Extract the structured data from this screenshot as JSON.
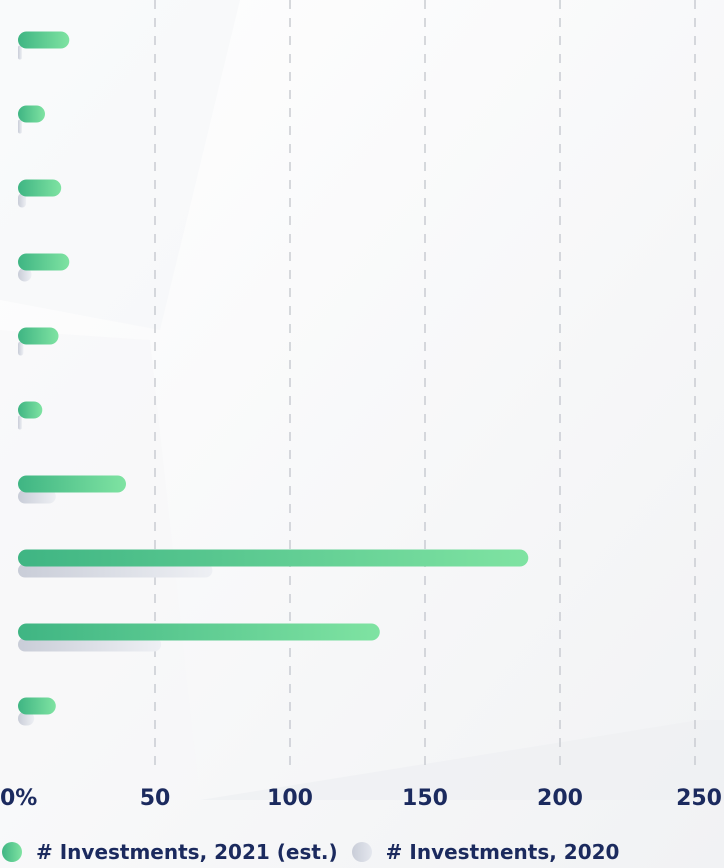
{
  "chart_data": {
    "type": "bar",
    "orientation": "horizontal",
    "xlim": [
      0,
      250
    ],
    "x_ticks": [
      {
        "value": 0,
        "label": "0%"
      },
      {
        "value": 50,
        "label": "50"
      },
      {
        "value": 100,
        "label": "100"
      },
      {
        "value": 150,
        "label": "150"
      },
      {
        "value": 200,
        "label": "200"
      },
      {
        "value": 250,
        "label": "250"
      }
    ],
    "grid": "vertical-dashed",
    "legend_position": "bottom",
    "series": [
      {
        "name": "# Investments, 2021 (est.)",
        "color": "#5dcb8e",
        "values": [
          19,
          10,
          16,
          19,
          15,
          9,
          40,
          189,
          134,
          14
        ]
      },
      {
        "name": "# Investments, 2020",
        "color": "#cdd1dc",
        "values": [
          1,
          1,
          3,
          5,
          2,
          1,
          14,
          72,
          53,
          6
        ]
      }
    ]
  }
}
